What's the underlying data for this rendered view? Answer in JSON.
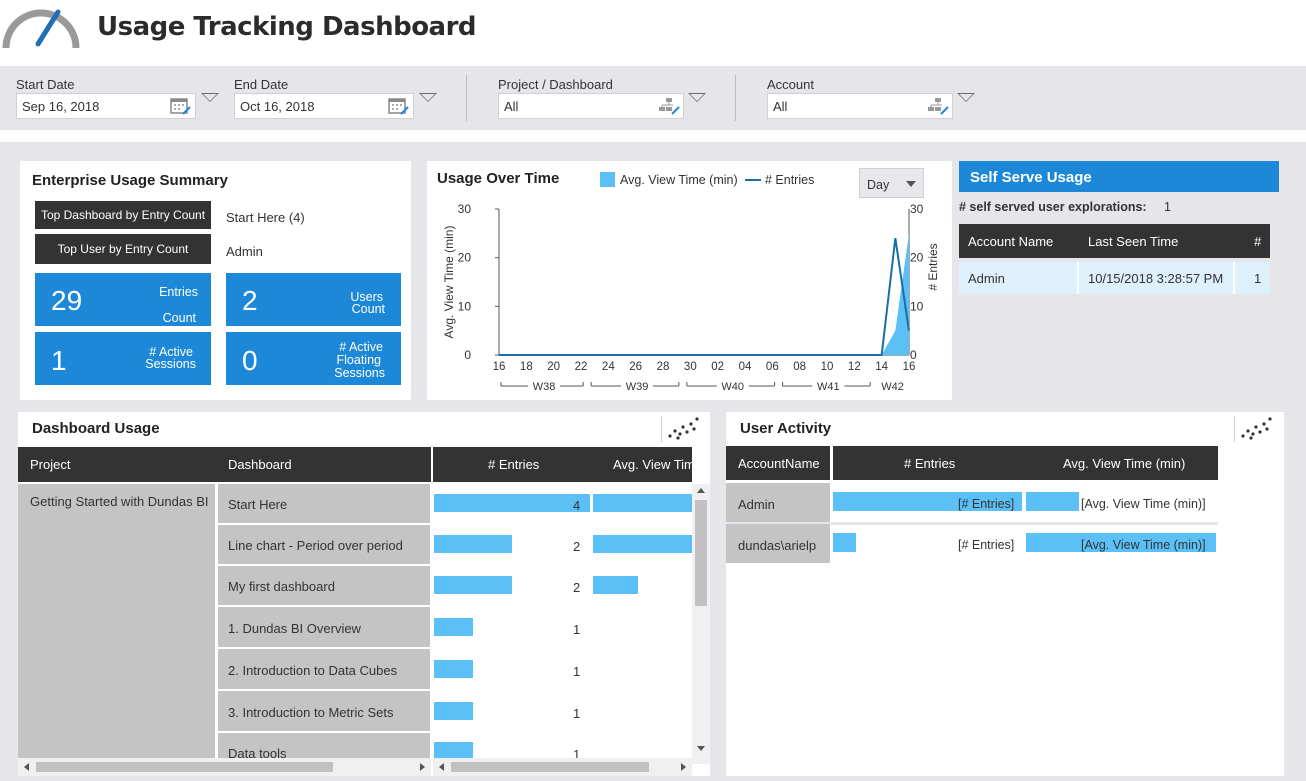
{
  "header": {
    "title": "Usage Tracking Dashboard"
  },
  "filters": {
    "start_date": {
      "label": "Start Date",
      "value": "Sep 16, 2018"
    },
    "end_date": {
      "label": "End Date",
      "value": "Oct 16, 2018"
    },
    "project": {
      "label": "Project / Dashboard",
      "value": "All"
    },
    "account": {
      "label": "Account",
      "value": "All"
    }
  },
  "summary": {
    "title": "Enterprise Usage Summary",
    "top_dashboard_label": "Top Dashboard by Entry Count",
    "top_dashboard_value": "Start Here (4)",
    "top_user_label": "Top User by Entry Count",
    "top_user_value": "Admin",
    "entries_value": "29",
    "entries_label_1": "Entries",
    "entries_label_2": "Count",
    "users_value": "2",
    "users_label_1": "Users",
    "users_label_2": "Count",
    "sessions_value": "1",
    "sessions_label_1": "# Active",
    "sessions_label_2": "Sessions",
    "floating_value": "0",
    "floating_label_1": "# Active",
    "floating_label_2": "Floating",
    "floating_label_3": "Sessions"
  },
  "usage_chart": {
    "title": "Usage Over Time",
    "dropdown": "Day"
  },
  "chart_data": {
    "type": "line",
    "title": "Usage Over Time",
    "x_ticks": [
      "16",
      "18",
      "20",
      "22",
      "24",
      "26",
      "28",
      "30",
      "02",
      "04",
      "06",
      "08",
      "10",
      "12",
      "14",
      "16"
    ],
    "week_labels": [
      "W38",
      "W39",
      "W40",
      "W41",
      "W42"
    ],
    "ylabel": "Avg. View Time (min)",
    "y2label": "# Entries",
    "ylim": [
      0,
      30
    ],
    "y_ticks": [
      0,
      10,
      20,
      30
    ],
    "y2_ticks": [
      0,
      10,
      20,
      30
    ],
    "series": [
      {
        "name": "Avg. View Time (min)",
        "kind": "area",
        "color": "#5bc0f5",
        "x": [
          1,
          2,
          3,
          4,
          5,
          6,
          7,
          8,
          9,
          10,
          11,
          12,
          13,
          14,
          15,
          16,
          17,
          18,
          19,
          20,
          21,
          22,
          23,
          24,
          25,
          26,
          27,
          28,
          29,
          30,
          31
        ],
        "values": [
          0,
          0,
          0,
          0,
          0,
          0,
          0,
          0,
          0,
          0,
          0,
          0,
          0,
          0,
          0,
          0,
          0,
          0,
          0,
          0,
          0,
          0,
          0,
          0,
          0,
          0,
          0,
          0,
          0,
          5,
          25
        ]
      },
      {
        "name": "# Entries",
        "kind": "line",
        "color": "#1a6fa8",
        "x": [
          1,
          2,
          3,
          4,
          5,
          6,
          7,
          8,
          9,
          10,
          11,
          12,
          13,
          14,
          15,
          16,
          17,
          18,
          19,
          20,
          21,
          22,
          23,
          24,
          25,
          26,
          27,
          28,
          29,
          30,
          31
        ],
        "values": [
          0,
          0,
          0,
          0,
          0,
          0,
          0,
          0,
          0,
          0,
          0,
          0,
          0,
          0,
          0,
          0,
          0,
          0,
          0,
          0,
          0,
          0,
          0,
          0,
          0,
          0,
          0,
          0,
          0,
          24,
          5
        ]
      }
    ]
  },
  "self_serve": {
    "title": "Self Serve Usage",
    "explorations_label": "# self served user explorations:",
    "explorations_value": "1",
    "columns": [
      "Account Name",
      "Last Seen Time",
      "#"
    ],
    "rows": [
      {
        "account": "Admin",
        "last_seen": "10/15/2018 3:28:57 PM",
        "count": "1"
      }
    ]
  },
  "dashboard_usage": {
    "title": "Dashboard Usage",
    "columns": [
      "Project",
      "Dashboard",
      "# Entries",
      "Avg. View Tim"
    ],
    "project": "Getting Started with Dundas BI",
    "rows": [
      {
        "dashboard": "Start Here",
        "entries": "4",
        "entries_frac": 1.0,
        "view_frac": 1.0
      },
      {
        "dashboard": "Line chart - Period over period",
        "entries": "2",
        "entries_frac": 0.5,
        "view_frac": 1.0
      },
      {
        "dashboard": "My first dashboard",
        "entries": "2",
        "entries_frac": 0.5,
        "view_frac": 0.45
      },
      {
        "dashboard": "1. Dundas BI Overview",
        "entries": "1",
        "entries_frac": 0.25,
        "view_frac": 0
      },
      {
        "dashboard": "2. Introduction to Data Cubes",
        "entries": "1",
        "entries_frac": 0.25,
        "view_frac": 0
      },
      {
        "dashboard": "3. Introduction to Metric Sets",
        "entries": "1",
        "entries_frac": 0.25,
        "view_frac": 0
      },
      {
        "dashboard": "Data tools",
        "entries": "1",
        "entries_frac": 0.25,
        "view_frac": 0
      }
    ]
  },
  "user_activity": {
    "title": "User Activity",
    "columns": [
      "AccountName",
      "# Entries",
      "Avg. View Time (min)"
    ],
    "rows": [
      {
        "account": "Admin",
        "entries_text": "[# Entries]",
        "view_text": "[Avg. View Time (min)]",
        "entries_frac": 1.0,
        "view_frac": 0.28
      },
      {
        "account": "dundas\\arielp",
        "entries_text": "[# Entries]",
        "view_text": "[Avg. View Time (min)]",
        "entries_frac": 0.12,
        "view_frac": 1.0
      }
    ]
  }
}
